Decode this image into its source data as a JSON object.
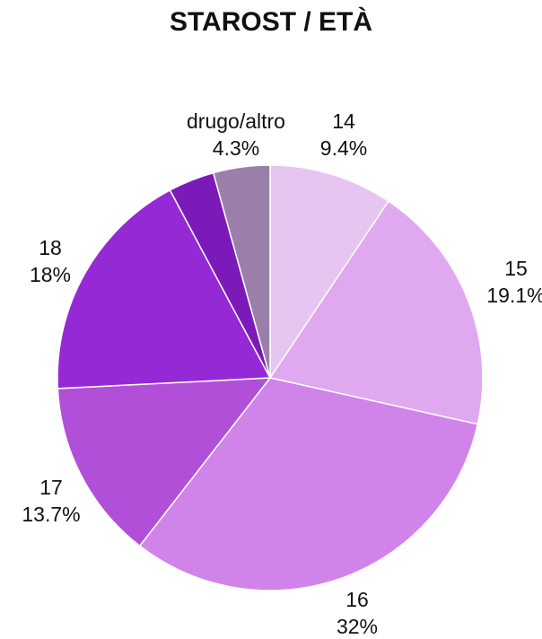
{
  "chart_data": {
    "type": "pie",
    "title": "STAROST / ETÀ",
    "slices": [
      {
        "label": "14",
        "value": 9.4,
        "value_label": "9.4%",
        "color": "#e7c5f1"
      },
      {
        "label": "15",
        "value": 19.1,
        "value_label": "19.1%",
        "color": "#e0a9ef"
      },
      {
        "label": "16",
        "value": 32,
        "value_label": "32%",
        "color": "#d084ea"
      },
      {
        "label": "17",
        "value": 13.7,
        "value_label": "13.7%",
        "color": "#b24fd8"
      },
      {
        "label": "18",
        "value": 18,
        "value_label": "18%",
        "color": "#9529d6"
      },
      {
        "label": "",
        "value": 3.5,
        "value_label": "",
        "color": "#7c1ab9"
      },
      {
        "label": "drugo/altro",
        "value": 4.3,
        "value_label": "4.3%",
        "color": "#9b7fab"
      }
    ]
  }
}
